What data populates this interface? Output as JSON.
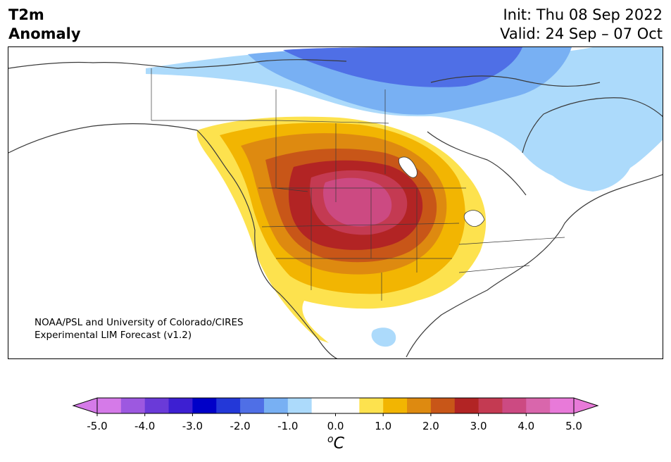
{
  "title": {
    "line1": "T2m",
    "line2": "Anomaly"
  },
  "dates": {
    "init": "Init: Thu 08 Sep 2022",
    "valid": "Valid: 24 Sep – 07 Oct"
  },
  "credit": {
    "line1": "NOAA/PSL and University of Colorado/CIRES",
    "line2": "Experimental LIM Forecast (v1.2)"
  },
  "colorbar": {
    "ticks": [
      "-5.0",
      "-4.0",
      "-3.0",
      "-2.0",
      "-1.0",
      "0.0",
      "1.0",
      "2.0",
      "3.0",
      "4.0",
      "5.0"
    ],
    "unit_main": "C",
    "unit_sup": "o",
    "colors": [
      "#d57ae8",
      "#9d58e0",
      "#6a3ad8",
      "#3d1fd2",
      "#0000c8",
      "#2338d8",
      "#4f6fe6",
      "#78b0f3",
      "#acdafb",
      "#ffffff",
      "#ffffff",
      "#fde24e",
      "#f2b502",
      "#de8a10",
      "#c85618",
      "#b22424",
      "#c43a52",
      "#cc4a82",
      "#d966ac",
      "#e87ad9"
    ]
  },
  "colors": {
    "land_outline": "#3a3a3a",
    "cold_light": "#acdafb",
    "cold_mid": "#78b0f3",
    "cold_strong": "#4f6fe6",
    "warm_1": "#fde24e",
    "warm_2": "#f2b502",
    "warm_3": "#de8a10",
    "warm_4": "#c85618",
    "warm_5": "#b22424",
    "warm_6": "#c43a52",
    "warm_7": "#cc4a82"
  }
}
